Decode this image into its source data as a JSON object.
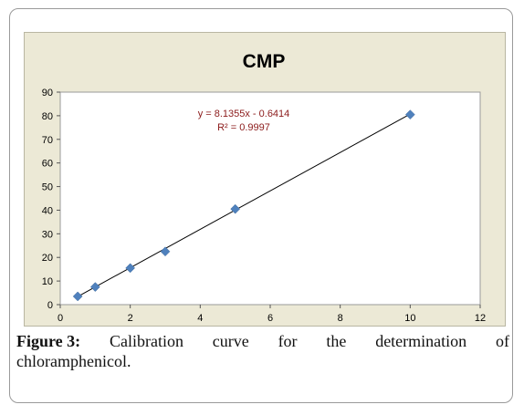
{
  "chart_data": {
    "type": "scatter",
    "title": "CMP",
    "xlabel": "",
    "ylabel": "",
    "xlim": [
      0,
      12
    ],
    "ylim": [
      0,
      90
    ],
    "x_ticks": [
      "0",
      "2",
      "4",
      "6",
      "8",
      "10",
      "12"
    ],
    "y_ticks": [
      "0",
      "10",
      "20",
      "30",
      "40",
      "50",
      "60",
      "70",
      "80",
      "90"
    ],
    "grid": false,
    "legend": "none",
    "series": [
      {
        "x": [
          0.5,
          1,
          2,
          3,
          5,
          10
        ],
        "y": [
          3.5,
          7.5,
          15.5,
          22.5,
          40.5,
          80.5
        ]
      }
    ],
    "trendline": {
      "slope": 8.1355,
      "intercept": -0.6414
    },
    "equation": "y = 8.1355x - 0.6414",
    "r_squared": "R² = 0.9997",
    "colors": {
      "marker": "#4f81bd",
      "line": "#000000",
      "equation": "#8b1a1a",
      "plot_bg": "#ffffff",
      "chart_bg": "#ece9d6"
    }
  },
  "caption": {
    "label": "Figure 3:",
    "words": [
      "Calibration",
      "curve",
      "for",
      "the",
      "determination",
      "of"
    ],
    "line2": "chloramphenicol."
  }
}
